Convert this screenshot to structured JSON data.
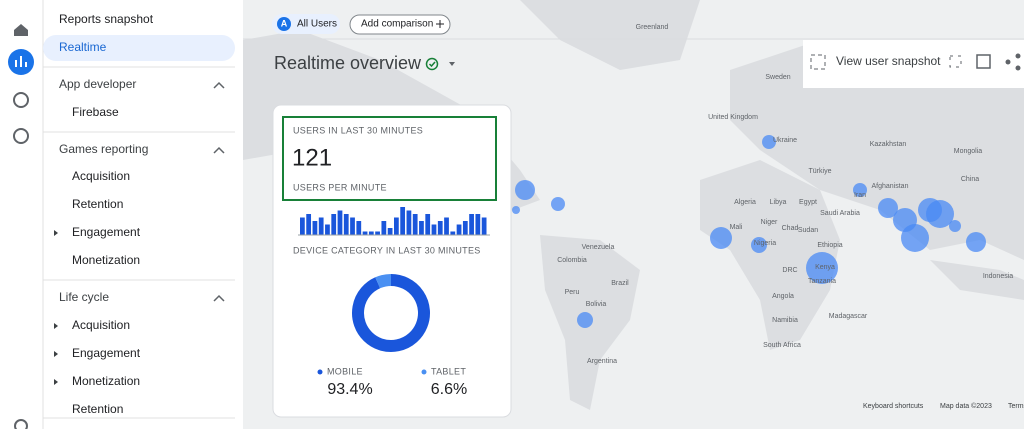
{
  "nav": {
    "top": [
      "Reports snapshot",
      "Realtime"
    ],
    "sections": [
      {
        "title": "App developer",
        "items": [
          "Firebase"
        ]
      },
      {
        "title": "Games reporting",
        "items": [
          "Acquisition",
          "Retention",
          "Engagement",
          "Monetization"
        ]
      },
      {
        "title": "Life cycle",
        "items": [
          "Acquisition",
          "Engagement",
          "Monetization",
          "Retention"
        ]
      }
    ]
  },
  "header": {
    "chip_letter": "A",
    "segment": "All Users",
    "add_comparison": "Add comparison",
    "title": "Realtime overview",
    "snapshot": "View user snapshot"
  },
  "card": {
    "users_label": "USERS IN LAST 30 MINUTES",
    "users": "121",
    "per_minute_label": "USERS PER MINUTE",
    "users_per_minute": [
      5,
      6,
      4,
      5,
      3,
      6,
      7,
      6,
      5,
      4,
      1,
      1,
      1,
      4,
      2,
      5,
      8,
      7,
      6,
      4,
      6,
      3,
      4,
      5,
      1,
      3,
      4,
      6,
      6,
      5
    ],
    "device_label": "DEVICE CATEGORY IN LAST 30 MINUTES",
    "devices": [
      {
        "name": "MOBILE",
        "value": 93.4,
        "value_label": "93.4%",
        "color": "#1a56db"
      },
      {
        "name": "TABLET",
        "value": 6.6,
        "value_label": "6.6%",
        "color": "#4a90f2"
      }
    ]
  },
  "map": {
    "labels": [
      "Greenland",
      "Sweden",
      "United Kingdom",
      "Ukraine",
      "Kazakhstan",
      "Mongolia",
      "China",
      "Türkiye",
      "Iran",
      "Afghanistan",
      "Algeria",
      "Libya",
      "Egypt",
      "Saudi Arabia",
      "Mali",
      "Niger",
      "Chad",
      "Sudan",
      "Nigeria",
      "Ethiopia",
      "DRC",
      "Kenya",
      "Tanzania",
      "Angola",
      "Namibia",
      "Madagascar",
      "South Africa",
      "Venezuela",
      "Colombia",
      "Peru",
      "Bolivia",
      "Brazil",
      "Argentina",
      "Indonesia"
    ],
    "footer": [
      "Keyboard shortcuts",
      "Map data ©2023",
      "Terms"
    ]
  }
}
